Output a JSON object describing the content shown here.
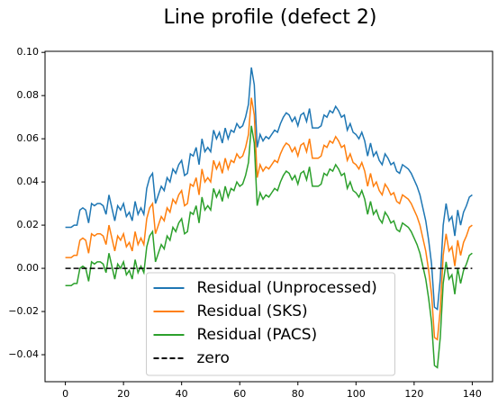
{
  "chart_data": {
    "type": "line",
    "title": "Line profile (defect 2)",
    "x": [
      0,
      1,
      2,
      3,
      4,
      5,
      6,
      7,
      8,
      9,
      10,
      11,
      12,
      13,
      14,
      15,
      16,
      17,
      18,
      19,
      20,
      21,
      22,
      23,
      24,
      25,
      26,
      27,
      28,
      29,
      30,
      31,
      32,
      33,
      34,
      35,
      36,
      37,
      38,
      39,
      40,
      41,
      42,
      43,
      44,
      45,
      46,
      47,
      48,
      49,
      50,
      51,
      52,
      53,
      54,
      55,
      56,
      57,
      58,
      59,
      60,
      61,
      62,
      63,
      64,
      65,
      66,
      67,
      68,
      69,
      70,
      71,
      72,
      73,
      74,
      75,
      76,
      77,
      78,
      79,
      80,
      81,
      82,
      83,
      84,
      85,
      86,
      87,
      88,
      89,
      90,
      91,
      92,
      93,
      94,
      95,
      96,
      97,
      98,
      99,
      100,
      101,
      102,
      103,
      104,
      105,
      106,
      107,
      108,
      109,
      110,
      111,
      112,
      113,
      114,
      115,
      116,
      117,
      118,
      119,
      120,
      121,
      122,
      123,
      124,
      125,
      126,
      127,
      128,
      129,
      130,
      131,
      132,
      133,
      134,
      135,
      136,
      137,
      138,
      139,
      140
    ],
    "series": [
      {
        "name": "Residual (Unprocessed)",
        "color": "#1f77b4",
        "values": [
          0.019,
          0.019,
          0.019,
          0.02,
          0.02,
          0.027,
          0.028,
          0.027,
          0.021,
          0.03,
          0.029,
          0.03,
          0.03,
          0.029,
          0.025,
          0.034,
          0.028,
          0.022,
          0.029,
          0.027,
          0.03,
          0.024,
          0.026,
          0.022,
          0.031,
          0.025,
          0.028,
          0.025,
          0.037,
          0.042,
          0.044,
          0.03,
          0.034,
          0.038,
          0.036,
          0.042,
          0.04,
          0.046,
          0.044,
          0.048,
          0.05,
          0.043,
          0.044,
          0.053,
          0.052,
          0.056,
          0.048,
          0.06,
          0.054,
          0.056,
          0.054,
          0.064,
          0.06,
          0.063,
          0.058,
          0.065,
          0.06,
          0.064,
          0.063,
          0.067,
          0.065,
          0.066,
          0.07,
          0.076,
          0.093,
          0.085,
          0.056,
          0.062,
          0.059,
          0.061,
          0.06,
          0.062,
          0.064,
          0.063,
          0.067,
          0.07,
          0.072,
          0.071,
          0.068,
          0.07,
          0.066,
          0.071,
          0.072,
          0.068,
          0.074,
          0.065,
          0.065,
          0.065,
          0.066,
          0.071,
          0.07,
          0.073,
          0.072,
          0.075,
          0.073,
          0.07,
          0.071,
          0.064,
          0.067,
          0.063,
          0.062,
          0.06,
          0.063,
          0.059,
          0.052,
          0.058,
          0.052,
          0.054,
          0.05,
          0.048,
          0.053,
          0.051,
          0.048,
          0.049,
          0.045,
          0.044,
          0.048,
          0.047,
          0.046,
          0.044,
          0.041,
          0.038,
          0.034,
          0.028,
          0.022,
          0.013,
          0.002,
          -0.018,
          -0.019,
          -0.005,
          0.02,
          0.03,
          0.022,
          0.024,
          0.015,
          0.027,
          0.02,
          0.026,
          0.029,
          0.033,
          0.034
        ]
      },
      {
        "name": "Residual (SKS)",
        "color": "#ff7f0e",
        "values": [
          0.005,
          0.005,
          0.005,
          0.006,
          0.006,
          0.013,
          0.014,
          0.013,
          0.007,
          0.016,
          0.015,
          0.016,
          0.016,
          0.015,
          0.011,
          0.02,
          0.014,
          0.008,
          0.015,
          0.013,
          0.016,
          0.01,
          0.012,
          0.008,
          0.017,
          0.011,
          0.014,
          0.011,
          0.023,
          0.028,
          0.03,
          0.016,
          0.02,
          0.024,
          0.022,
          0.028,
          0.026,
          0.032,
          0.03,
          0.034,
          0.036,
          0.029,
          0.03,
          0.039,
          0.038,
          0.042,
          0.034,
          0.046,
          0.04,
          0.042,
          0.04,
          0.05,
          0.046,
          0.049,
          0.044,
          0.051,
          0.046,
          0.05,
          0.049,
          0.053,
          0.051,
          0.052,
          0.056,
          0.062,
          0.079,
          0.071,
          0.042,
          0.048,
          0.045,
          0.047,
          0.046,
          0.048,
          0.05,
          0.049,
          0.053,
          0.056,
          0.058,
          0.057,
          0.054,
          0.056,
          0.052,
          0.057,
          0.058,
          0.054,
          0.06,
          0.051,
          0.051,
          0.051,
          0.052,
          0.057,
          0.056,
          0.059,
          0.058,
          0.061,
          0.059,
          0.056,
          0.057,
          0.05,
          0.053,
          0.049,
          0.048,
          0.046,
          0.049,
          0.045,
          0.038,
          0.044,
          0.038,
          0.04,
          0.036,
          0.034,
          0.039,
          0.037,
          0.034,
          0.035,
          0.031,
          0.03,
          0.034,
          0.033,
          0.032,
          0.03,
          0.027,
          0.024,
          0.02,
          0.014,
          0.008,
          -0.001,
          -0.012,
          -0.032,
          -0.033,
          -0.019,
          0.006,
          0.016,
          0.008,
          0.01,
          0.001,
          0.013,
          0.006,
          0.012,
          0.015,
          0.019,
          0.02
        ]
      },
      {
        "name": "Residual (PACS)",
        "color": "#2ca02c",
        "values": [
          -0.008,
          -0.008,
          -0.008,
          -0.007,
          -0.007,
          0.0,
          0.001,
          0.0,
          -0.006,
          0.003,
          0.002,
          0.003,
          0.003,
          0.002,
          -0.002,
          0.007,
          0.001,
          -0.005,
          0.002,
          0.0,
          0.003,
          -0.003,
          -0.001,
          -0.005,
          0.004,
          -0.002,
          0.001,
          -0.002,
          0.01,
          0.015,
          0.017,
          0.003,
          0.007,
          0.011,
          0.009,
          0.015,
          0.013,
          0.019,
          0.017,
          0.021,
          0.023,
          0.016,
          0.017,
          0.026,
          0.025,
          0.029,
          0.021,
          0.033,
          0.027,
          0.029,
          0.027,
          0.037,
          0.033,
          0.036,
          0.031,
          0.038,
          0.033,
          0.037,
          0.036,
          0.04,
          0.038,
          0.039,
          0.043,
          0.049,
          0.066,
          0.058,
          0.029,
          0.035,
          0.032,
          0.034,
          0.033,
          0.035,
          0.037,
          0.036,
          0.04,
          0.043,
          0.045,
          0.044,
          0.041,
          0.043,
          0.039,
          0.044,
          0.045,
          0.041,
          0.047,
          0.038,
          0.038,
          0.038,
          0.039,
          0.044,
          0.043,
          0.046,
          0.045,
          0.048,
          0.046,
          0.043,
          0.044,
          0.037,
          0.04,
          0.036,
          0.035,
          0.033,
          0.036,
          0.032,
          0.025,
          0.031,
          0.025,
          0.027,
          0.023,
          0.021,
          0.026,
          0.024,
          0.021,
          0.022,
          0.018,
          0.017,
          0.021,
          0.02,
          0.019,
          0.017,
          0.014,
          0.011,
          0.007,
          0.001,
          -0.005,
          -0.014,
          -0.025,
          -0.045,
          -0.046,
          -0.032,
          -0.007,
          0.003,
          -0.005,
          -0.003,
          -0.012,
          0.0,
          -0.007,
          -0.001,
          0.002,
          0.006,
          0.007
        ]
      },
      {
        "name": "zero",
        "color": "#000000",
        "dashed": true,
        "x": [
          0,
          140
        ],
        "values": [
          0,
          0
        ]
      }
    ],
    "xlim": [
      -7,
      147
    ],
    "xticks": [
      0,
      20,
      40,
      60,
      80,
      100,
      120,
      140
    ],
    "ylim": [
      -0.0525,
      0.1005
    ],
    "yticks": [
      {
        "value": -0.04,
        "label": "−0.04"
      },
      {
        "value": -0.02,
        "label": "−0.02"
      },
      {
        "value": 0,
        "label": "0.00"
      },
      0.02,
      0.04,
      0.06,
      0.08,
      {
        "value": 0.1,
        "label": "0.10"
      }
    ],
    "legend": "lower center"
  }
}
